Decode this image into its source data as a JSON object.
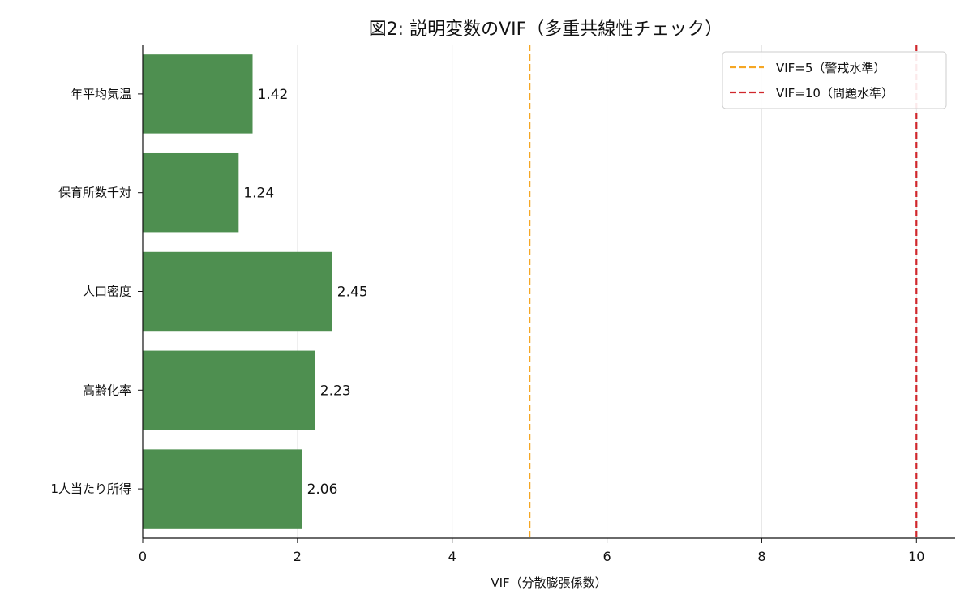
{
  "chart_data": {
    "type": "bar",
    "orientation": "horizontal",
    "title": "図2: 説明変数のVIF（多重共線性チェック）",
    "xlabel": "VIF（分散膨張係数）",
    "ylabel": "",
    "categories": [
      "年平均気温",
      "保育所数千対",
      "人口密度",
      "高齢化率",
      "1人当たり所得"
    ],
    "values": [
      1.42,
      1.24,
      2.45,
      2.23,
      2.06
    ],
    "value_labels": [
      "1.42",
      "1.24",
      "2.45",
      "2.23",
      "2.06"
    ],
    "xlim": [
      0,
      10.5
    ],
    "xticks": [
      0,
      2,
      4,
      6,
      8,
      10
    ],
    "xtick_labels": [
      "0",
      "2",
      "4",
      "6",
      "8",
      "10"
    ],
    "grid": "vertical",
    "bar_color": "#4e8f50",
    "reference_lines": [
      {
        "value": 5,
        "label": "VIF=5（警戒水準）",
        "color": "#f5a623",
        "style": "dashed"
      },
      {
        "value": 10,
        "label": "VIF=10（問題水準）",
        "color": "#d0272c",
        "style": "dashed"
      }
    ],
    "legend_position": "top-right"
  }
}
